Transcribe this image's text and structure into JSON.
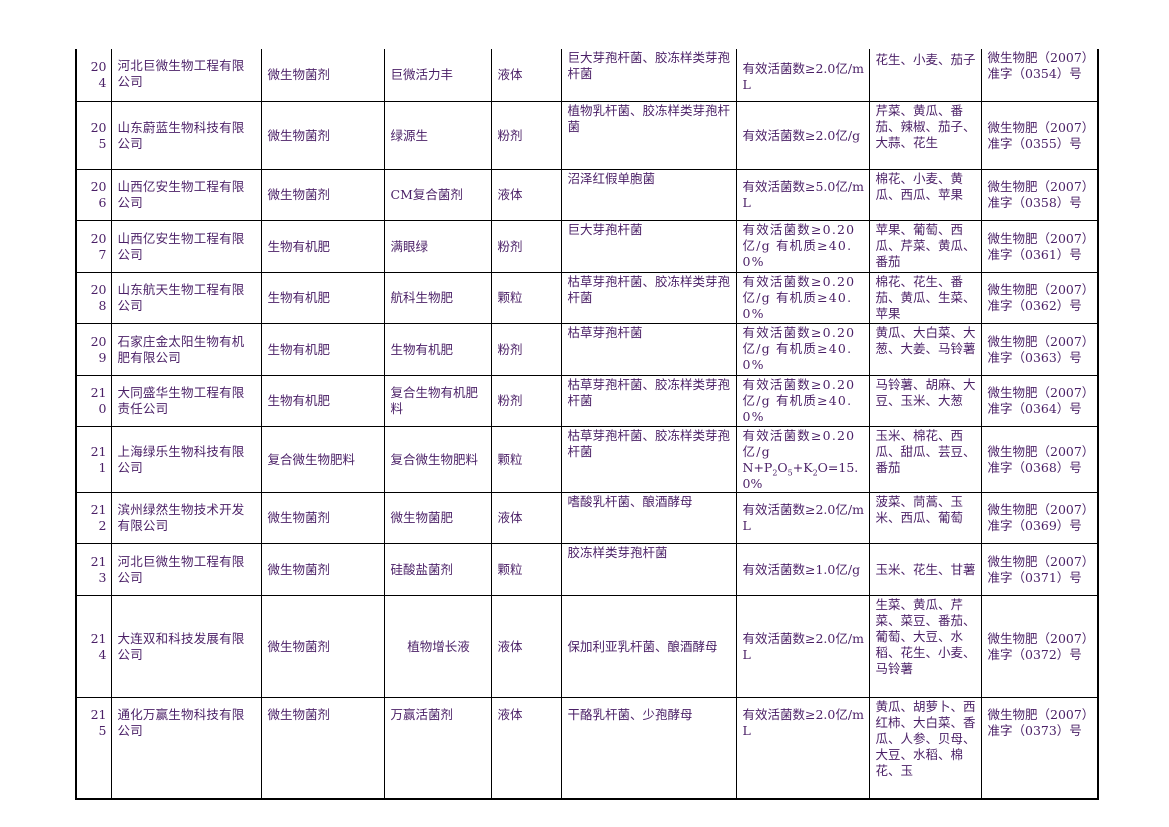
{
  "rows": [
    {
      "no": "204",
      "company": "河北巨微生物工程有限公司",
      "type": "微生物菌剂",
      "product": "巨微活力丰",
      "form": "液体",
      "strain": "巨大芽孢杆菌、胶冻样类芽孢杆菌",
      "content": "有效活菌数≥2.0亿/mL",
      "crops": "花生、小麦、茄子",
      "reg": "微生物肥（2007）准字（0354）号"
    },
    {
      "no": "205",
      "company": "山东蔚蓝生物科技有限公司",
      "type": "微生物菌剂",
      "product": "绿源生",
      "form": "粉剂",
      "strain": "植物乳杆菌、胶冻样类芽孢杆菌",
      "content": "有效活菌数≥2.0亿/g",
      "crops": "芹菜、黄瓜、番茄、辣椒、茄子、大蒜、花生",
      "reg": "微生物肥（2007）准字（0355）号"
    },
    {
      "no": "206",
      "company": "山西亿安生物工程有限公司",
      "type": "微生物菌剂",
      "product": "CM复合菌剂",
      "form": "液体",
      "strain": "沼泽红假单胞菌",
      "content": "有效活菌数≥5.0亿/mL",
      "crops": "棉花、小麦、黄瓜、西瓜、苹果",
      "reg": "微生物肥（2007）准字（0358）号"
    },
    {
      "no": "207",
      "company": "山西亿安生物工程有限公司",
      "type": "生物有机肥",
      "product": "满眼绿",
      "form": "粉剂",
      "strain": "巨大芽孢杆菌",
      "content": "有效活菌数≥0.20亿/g 有机质≥40.0%",
      "crops": "苹果、葡萄、西瓜、芹菜、黄瓜、番茄",
      "reg": "微生物肥（2007）准字（0361）号"
    },
    {
      "no": "208",
      "company": "山东航天生物工程有限公司",
      "type": "生物有机肥",
      "product": "航科生物肥",
      "form": "颗粒",
      "strain": "枯草芽孢杆菌、胶冻样类芽孢杆菌",
      "content": "有效活菌数≥0.20亿/g 有机质≥40.0%",
      "crops": "棉花、花生、番茄、黄瓜、生菜、苹果",
      "reg": "微生物肥（2007）准字（0362）号"
    },
    {
      "no": "209",
      "company": "石家庄金太阳生物有机肥有限公司",
      "type": "生物有机肥",
      "product": "生物有机肥",
      "form": "粉剂",
      "strain": "枯草芽孢杆菌",
      "content": "有效活菌数≥0.20亿/g 有机质≥40.0%",
      "crops": "黄瓜、大白菜、大葱、大姜、马铃薯",
      "reg": "微生物肥（2007）准字（0363）号"
    },
    {
      "no": "210",
      "company": "大同盛华生物工程有限责任公司",
      "type": "生物有机肥",
      "product": "复合生物有机肥料",
      "form": "粉剂",
      "strain": "枯草芽孢杆菌、胶冻样类芽孢杆菌",
      "content": "有效活菌数≥0.20亿/g 有机质≥40.0%",
      "crops": "马铃薯、胡麻、大豆、玉米、大葱",
      "reg": "微生物肥（2007）准字（0364）号"
    },
    {
      "no": "211",
      "company": "上海绿乐生物科技有限公司",
      "type": "复合微生物肥料",
      "product": "复合微生物肥料",
      "form": "颗粒",
      "strain": "枯草芽孢杆菌、胶冻样类芽孢杆菌",
      "content_a": "有效活菌数≥0.20亿/g",
      "content_b": "N+P",
      "content_c": "2",
      "content_d": "O",
      "content_e": "5",
      "content_f": "+K",
      "content_g": "2",
      "content_h": "O=15.0%",
      "crops": "玉米、棉花、西瓜、甜瓜、芸豆、番茄",
      "reg": "微生物肥（2007）准字（0368）号"
    },
    {
      "no": "212",
      "company": "滨州绿然生物技术开发有限公司",
      "type": "微生物菌剂",
      "product": "微生物菌肥",
      "form": "液体",
      "strain": "嗜酸乳杆菌、酿酒酵母",
      "content": "有效活菌数≥2.0亿/mL",
      "crops": "菠菜、茼蒿、玉米、西瓜、葡萄",
      "reg": "微生物肥（2007）准字（0369）号"
    },
    {
      "no": "213",
      "company": "河北巨微生物工程有限公司",
      "type": "微生物菌剂",
      "product": "硅酸盐菌剂",
      "form": "颗粒",
      "strain": "胶冻样类芽孢杆菌",
      "content": "有效活菌数≥1.0亿/g",
      "crops": "玉米、花生、甘薯",
      "reg": "微生物肥（2007）准字（0371）号"
    },
    {
      "no": "214",
      "company": "大连双和科技发展有限公司",
      "type": "微生物菌剂",
      "product": "植物增长液",
      "form": "液体",
      "strain": "保加利亚乳杆菌、酿酒酵母",
      "content": "有效活菌数≥2.0亿/mL",
      "crops": "生菜、黄瓜、芹菜、菜豆、番茄、葡萄、大豆、水稻、花生、小麦、马铃薯",
      "reg": "微生物肥（2007）准字（0372）号"
    },
    {
      "no": "215",
      "company": "通化万赢生物科技有限公司",
      "type": "微生物菌剂",
      "product": "万赢活菌剂",
      "form": "液体",
      "strain": "干酪乳杆菌、少孢酵母",
      "content": "有效活菌数≥2.0亿/mL",
      "crops": "黄瓜、胡萝卜、西红柿、大白菜、香瓜、人参、贝母、大豆、水稻、棉花、玉",
      "reg": "微生物肥（2007）准字（0373）号"
    }
  ]
}
